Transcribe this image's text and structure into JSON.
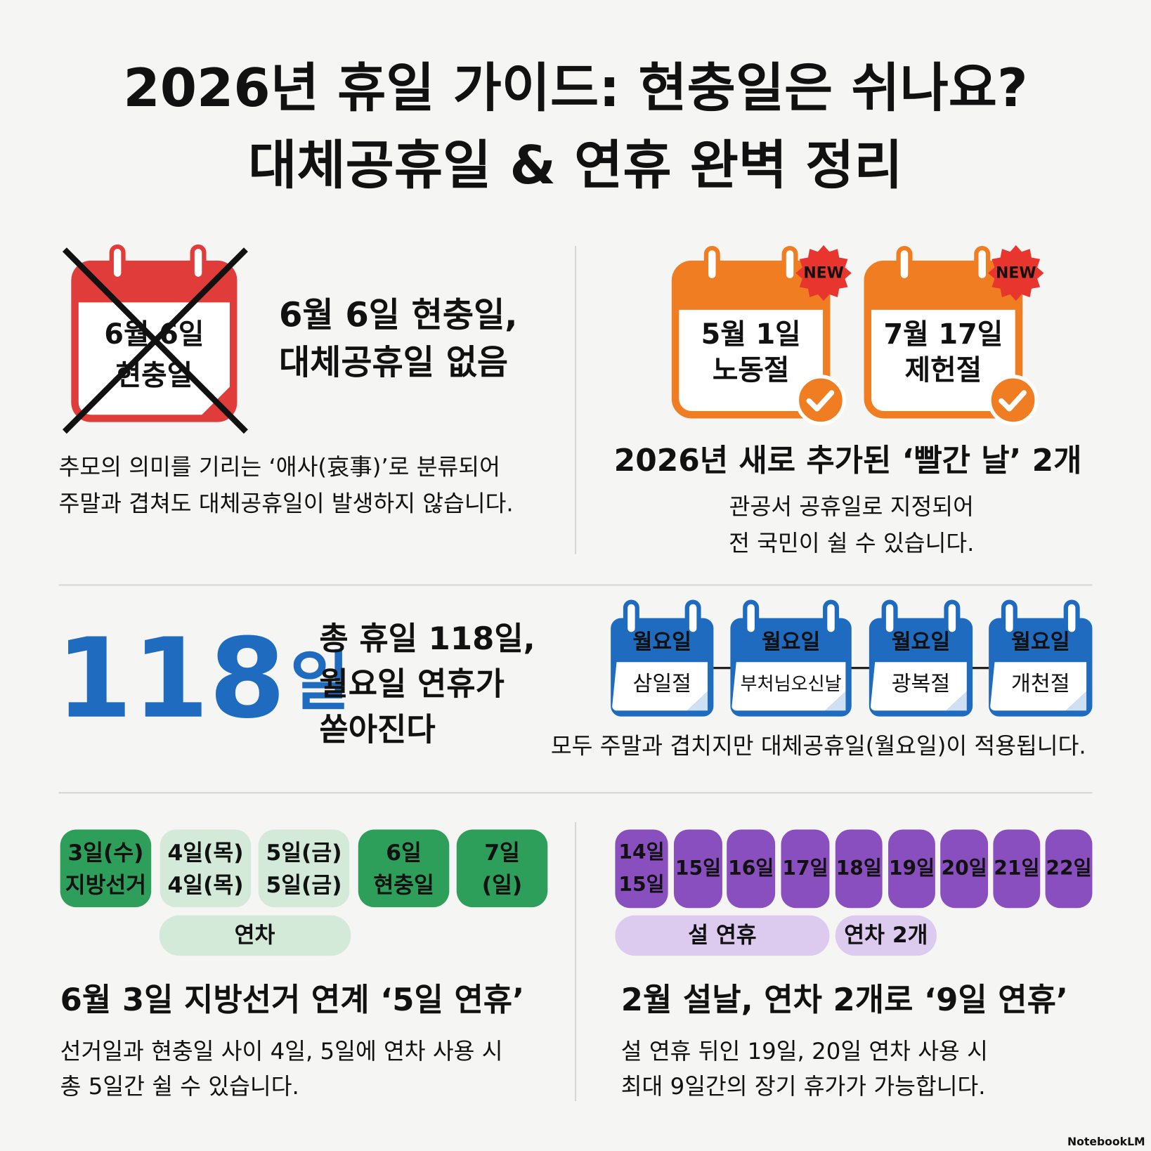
{
  "header": {
    "title_line1": "2026년 휴일 가이드: 현충일은 쉬나요?",
    "title_line2": "대체공휴일 & 연휴 완벽 정리"
  },
  "section_no_substitute": {
    "calendar": {
      "date": "6월 6일",
      "name": "현충일",
      "color": "#e03c3a"
    },
    "heading": [
      "6월 6일 현충일,",
      "대체공휴일 없음"
    ],
    "body": [
      "추모의 의미를 기리는 ‘애사(哀事)’로 분류되어",
      "주말과 겹쳐도 대체공휴일이 발생하지 않습니다."
    ]
  },
  "section_new_holidays": {
    "color": "#f07d22",
    "calendars": [
      {
        "badge": "NEW",
        "date": "5월 1일",
        "name": "노동절"
      },
      {
        "badge": "NEW",
        "date": "7월 17일",
        "name": "제헌절"
      }
    ],
    "heading": "2026년 새로 추가된 ‘빨간 날’ 2개",
    "body": [
      "관공서 공휴일로 지정되어",
      "전 국민이 쉴 수 있습니다."
    ]
  },
  "section_total": {
    "color": "#1f6bbf",
    "big_number": "118",
    "big_unit": "일",
    "heading": [
      "총 휴일 118일,",
      "월요일 연휴가",
      "쏟아진다"
    ],
    "calendars": [
      {
        "day": "월요일",
        "name": "삼일절"
      },
      {
        "day": "월요일",
        "name": "부처님오신날"
      },
      {
        "day": "월요일",
        "name": "광복절"
      },
      {
        "day": "월요일",
        "name": "개천절"
      }
    ],
    "caption": "모두 주말과 겹치지만 대체공휴일(월요일)이 적용됩니다."
  },
  "section_june": {
    "days": [
      {
        "lines": [
          "3일(수)",
          "지방선거"
        ],
        "color": "#2e9e5b"
      },
      {
        "lines": [
          "4일(목)",
          "4일(목)"
        ],
        "color": "#d3ead9"
      },
      {
        "lines": [
          "5일(금)",
          "5일(금)"
        ],
        "color": "#d3ead9"
      },
      {
        "lines": [
          "6일",
          "현충일"
        ],
        "color": "#2e9e5b"
      },
      {
        "lines": [
          "7일",
          "(일)"
        ],
        "color": "#2e9e5b"
      }
    ],
    "bracket": "연차",
    "heading": "6월 3일 지방선거 연계 ‘5일 연휴’",
    "body": [
      "선거일과 현충일 사이 4일, 5일에 연차 사용 시",
      "총 5일간 쉴 수 있습니다."
    ]
  },
  "section_feb": {
    "color": "#8a4fbf",
    "days": [
      {
        "lines": [
          "14일",
          "15일"
        ]
      },
      {
        "lines": [
          "15일"
        ]
      },
      {
        "lines": [
          "16일"
        ]
      },
      {
        "lines": [
          "17일"
        ]
      },
      {
        "lines": [
          "18일"
        ]
      },
      {
        "lines": [
          "19일"
        ]
      },
      {
        "lines": [
          "20일"
        ]
      },
      {
        "lines": [
          "21일"
        ]
      },
      {
        "lines": [
          "22일"
        ]
      }
    ],
    "brackets": [
      "설 연휴",
      "연차 2개"
    ],
    "heading": "2월 설날, 연차 2개로 ‘9일 연휴’",
    "body": [
      "설 연휴 뒤인 19일, 20일 연차 사용 시",
      "최대 9일간의 장기 휴가가 가능합니다."
    ]
  },
  "footer": {
    "brand": "NotebookLM"
  }
}
